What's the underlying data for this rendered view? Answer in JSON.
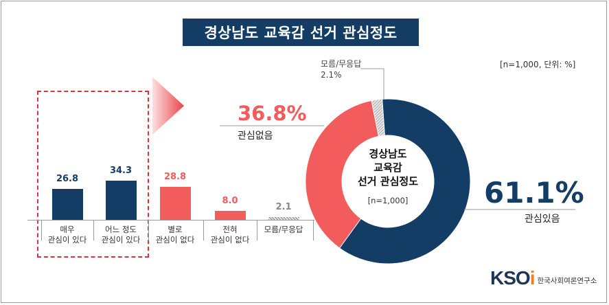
{
  "title": "경상남도 교육감 선거 관심정도",
  "note": "[n=1,000,  단위: %]",
  "colors": {
    "navy": "#143d66",
    "red": "#f25c5c",
    "gray": "#c8c8c8"
  },
  "chart_data": [
    {
      "type": "bar",
      "categories": [
        "매우\n관심이 있다",
        "어느 정도\n관심이 있다",
        "별로\n관심이 없다",
        "전혀\n관심이 없다",
        "모름/무응답"
      ],
      "category_lines": [
        [
          "매우",
          "관심이 있다"
        ],
        [
          "어느 정도",
          "관심이 있다"
        ],
        [
          "별로",
          "관심이 없다"
        ],
        [
          "전혀",
          "관심이 없다"
        ],
        [
          "모름/무응답",
          ""
        ]
      ],
      "values": [
        26.8,
        34.3,
        28.8,
        8.0,
        2.1
      ],
      "value_labels": [
        "26.8",
        "34.3",
        "28.8",
        "8.0",
        "2.1"
      ],
      "colors": [
        "#143d66",
        "#143d66",
        "#f25c5c",
        "#f25c5c",
        "#c8c8c8"
      ]
    },
    {
      "type": "pie",
      "donut": true,
      "center_title": [
        "경상남도",
        "교육감",
        "선거 관심정도"
      ],
      "center_note": "[n=1,000]",
      "slices": [
        {
          "label": "관심있음",
          "value": 61.1,
          "value_label": "61.1%",
          "color": "#143d66"
        },
        {
          "label": "관심없음",
          "value": 36.8,
          "value_label": "36.8%",
          "color": "#f25c5c"
        },
        {
          "label": "모름/무응답",
          "value": 2.1,
          "value_label": "2.1%",
          "color": "#c8c8c8"
        }
      ]
    }
  ],
  "logo": {
    "mark": "KSOI",
    "name": "한국사회여론연구소"
  }
}
